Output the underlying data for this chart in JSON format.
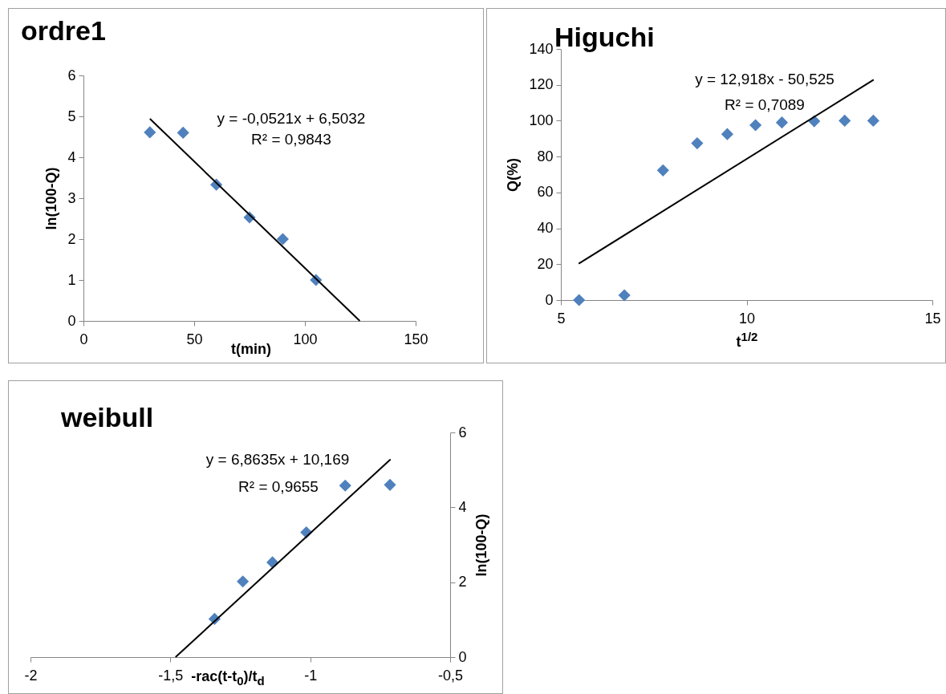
{
  "chart_data": [
    {
      "type": "scatter",
      "title": "ordre1",
      "xlabel": "t(min)",
      "ylabel": "ln(100-Q)",
      "xlim": [
        0,
        150
      ],
      "xticks": [
        0,
        50,
        100,
        150
      ],
      "ylim": [
        0,
        6
      ],
      "yticks": [
        0,
        1,
        2,
        3,
        4,
        5,
        6
      ],
      "annotations": [
        "y = -0,0521x + 6,5032",
        "R² = 0,9843"
      ],
      "series": [
        {
          "type": "scatter",
          "color": "#4f81bd",
          "marker": "diamond",
          "x": [
            30,
            45,
            60,
            75,
            90,
            105
          ],
          "values": [
            4.61,
            4.6,
            3.33,
            2.53,
            2.0,
            1.0
          ]
        },
        {
          "type": "line",
          "color": "#000000",
          "x": [
            30,
            124.8
          ],
          "values": [
            4.94,
            0
          ]
        }
      ]
    },
    {
      "type": "scatter",
      "title": "Higuchi",
      "xlabel": "t$^{1/2}$",
      "ylabel": "Q(%)",
      "xlim": [
        5,
        15
      ],
      "xticks": [
        5,
        10,
        15
      ],
      "ylim": [
        0,
        140
      ],
      "yticks": [
        0,
        20,
        40,
        60,
        80,
        100,
        120,
        140
      ],
      "annotations": [
        "y = 12,918x - 50,525",
        "R² = 0,7089"
      ],
      "series": [
        {
          "type": "scatter",
          "color": "#4f81bd",
          "marker": "diamond",
          "x": [
            5.49,
            6.71,
            7.75,
            8.67,
            9.48,
            10.24,
            10.95,
            11.82,
            12.64,
            13.41
          ],
          "values": [
            0,
            2.7,
            72.3,
            87.4,
            92.5,
            97.5,
            99.0,
            99.7,
            100,
            100
          ]
        },
        {
          "type": "line",
          "color": "#000000",
          "x": [
            5.48,
            13.42
          ],
          "values": [
            20.3,
            122.8
          ]
        }
      ]
    },
    {
      "type": "scatter",
      "title": "weibull",
      "xlabel": "-rac(t-t$_{0}$)/t$_{d}$",
      "ylabel": "ln(100-Q)",
      "xlim": [
        -2,
        -0.5
      ],
      "xticks": [
        -2,
        {
          "value": -1.5,
          "label": "-1,5"
        },
        -1,
        {
          "value": -0.5,
          "label": "-0,5"
        }
      ],
      "ylim": [
        0,
        6
      ],
      "yticks": [
        0,
        2,
        4,
        6
      ],
      "annotations": [
        "y = 6,8635x + 10,169",
        "R² = 0,9655"
      ],
      "series": [
        {
          "type": "scatter",
          "color": "#4f81bd",
          "marker": "diamond",
          "x": [
            -1.342,
            -1.241,
            -1.135,
            -1.014,
            -0.875,
            -0.715
          ],
          "values": [
            1.02,
            2.02,
            2.53,
            3.33,
            4.58,
            4.6
          ]
        },
        {
          "type": "line",
          "color": "#000000",
          "x": [
            -1.4815,
            -0.713
          ],
          "values": [
            0,
            5.28
          ]
        }
      ]
    }
  ]
}
